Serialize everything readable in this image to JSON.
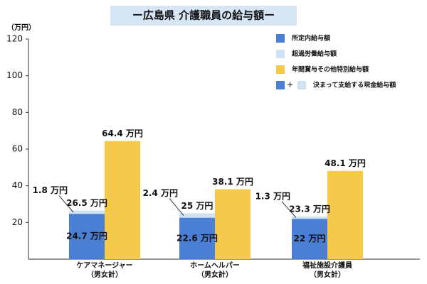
{
  "chart_data": {
    "type": "stacked-bar",
    "title": "ー広島県 介護職員の給与額ー",
    "y_label": "（万円）",
    "categories": [
      [
        "ケアマネージャー",
        "（男女計）"
      ],
      [
        "ホームヘルパー",
        "（男女計）"
      ],
      [
        "福祉施設介護員",
        "（男女計）"
      ]
    ],
    "ylim": [
      0,
      120
    ],
    "yticks": [
      20,
      40,
      60,
      80,
      100,
      120
    ],
    "series": [
      {
        "name": "所定内給与額",
        "color": "#4a7fd4",
        "values": [
          24.7,
          22.6,
          22
        ],
        "value_labels": [
          "24.7 万円",
          "22.6 万円",
          "22 万円"
        ]
      },
      {
        "name": "超過労働給与額",
        "color": "#cfe2f3",
        "values": [
          1.8,
          2.4,
          1.3
        ],
        "value_labels": [
          "1.8 万円",
          "2.4 万円",
          "1.3 万円"
        ]
      },
      {
        "name": "年間賞与その他特別給与額",
        "color": "#f5c94c",
        "values": [
          64.4,
          38.1,
          48.1
        ],
        "value_labels": [
          "64.4 万円",
          "38.1 万円",
          "48.1 万円"
        ]
      }
    ],
    "totals": {
      "name": "決まって支給する現金給与額",
      "symbol": "＋",
      "values": [
        26.5,
        25,
        23.3
      ],
      "value_labels": [
        "26.5 万円",
        "25 万円",
        "23.3 万円"
      ]
    }
  }
}
